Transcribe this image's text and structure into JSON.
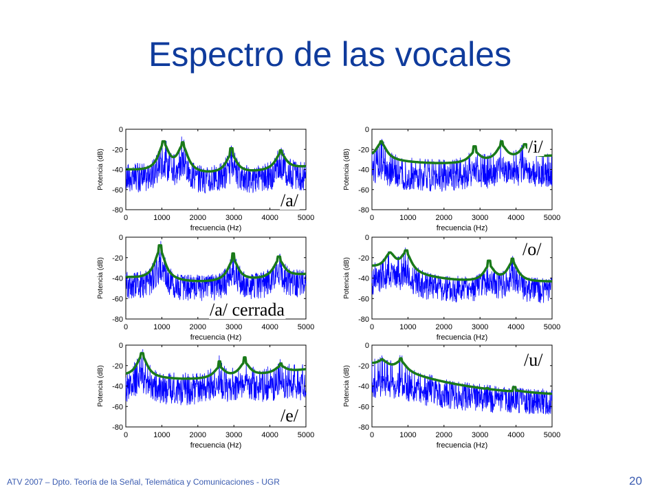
{
  "slide": {
    "title": "Espectro de las vocales",
    "footer": "ATV 2007 – Dpto. Teoría de la Señal, Telemática y Comunicaciones - UGR",
    "page_number": "20"
  },
  "colors": {
    "title": "#0f3b9c",
    "spectrum": "#0000ff",
    "envelope": "#1a7a1a",
    "footer": "#3a5bb0"
  },
  "chart_data": [
    {
      "type": "line",
      "vowel_label": "/a/",
      "xlabel": "frecuencia (Hz)",
      "ylabel": "Potencia (dB)",
      "xlim": [
        0,
        5000
      ],
      "ylim": [
        -80,
        0
      ],
      "xticks": [
        0,
        1000,
        2000,
        3000,
        4000,
        5000
      ],
      "yticks": [
        0,
        -20,
        -40,
        -60,
        -80
      ],
      "envelope": {
        "formants": [
          [
            1050,
            -12
          ],
          [
            1580,
            -13
          ],
          [
            2930,
            -19
          ],
          [
            4300,
            -21
          ]
        ],
        "start": -41,
        "end": -38
      },
      "spectrum": {
        "floor": -62,
        "peak_offset": 6
      }
    },
    {
      "type": "line",
      "vowel_label": "/i/",
      "xlabel": "frecuencia (Hz)",
      "ylabel": "Potencia (dB)",
      "xlim": [
        0,
        5000
      ],
      "ylim": [
        -80,
        0
      ],
      "xticks": [
        0,
        1000,
        2000,
        3000,
        4000,
        5000
      ],
      "yticks": [
        0,
        -20,
        -40,
        -60,
        -80
      ],
      "envelope": {
        "formants": [
          [
            260,
            -12
          ],
          [
            2850,
            -17
          ],
          [
            3600,
            -12
          ],
          [
            4250,
            -15
          ]
        ],
        "start": -30,
        "end": -27
      },
      "spectrum": {
        "floor": -68,
        "peak_offset": 4
      }
    },
    {
      "type": "line",
      "vowel_label": "/a/ cerrada",
      "xlabel": "frecuencia (Hz)",
      "ylabel": "Potencia (dB)",
      "xlim": [
        0,
        5000
      ],
      "ylim": [
        -80,
        0
      ],
      "xticks": [
        0,
        1000,
        2000,
        3000,
        4000,
        5000
      ],
      "yticks": [
        0,
        -20,
        -40,
        -60,
        -80
      ],
      "envelope": {
        "formants": [
          [
            950,
            -8
          ],
          [
            2980,
            -16
          ],
          [
            4250,
            -19
          ]
        ],
        "start": -40,
        "end": -37
      },
      "spectrum": {
        "floor": -58,
        "peak_offset": 5
      }
    },
    {
      "type": "line",
      "vowel_label": "/o/",
      "xlabel": "frecuencia (Hz)",
      "ylabel": "Potencia (dB)",
      "xlim": [
        0,
        5000
      ],
      "ylim": [
        -80,
        0
      ],
      "xticks": [
        0,
        1000,
        2000,
        3000,
        4000,
        5000
      ],
      "yticks": [
        0,
        -20,
        -40,
        -60,
        -80
      ],
      "envelope": {
        "formants": [
          [
            500,
            -15
          ],
          [
            950,
            -13
          ],
          [
            3250,
            -23
          ],
          [
            3900,
            -21
          ]
        ],
        "start": -30,
        "end": -44
      },
      "spectrum": {
        "floor": -62,
        "peak_offset": 3
      }
    },
    {
      "type": "line",
      "vowel_label": "/e/",
      "xlabel": "frecuencia (Hz)",
      "ylabel": "Potencia (dB)",
      "xlim": [
        0,
        5000
      ],
      "ylim": [
        -80,
        0
      ],
      "xticks": [
        0,
        1000,
        2000,
        3000,
        4000,
        5000
      ],
      "yticks": [
        0,
        -20,
        -40,
        -60,
        -80
      ],
      "envelope": {
        "formants": [
          [
            450,
            -8
          ],
          [
            2600,
            -16
          ],
          [
            3300,
            -12
          ],
          [
            4300,
            -18
          ]
        ],
        "start": -31,
        "end": -24
      },
      "spectrum": {
        "floor": -62,
        "peak_offset": 6
      }
    },
    {
      "type": "line",
      "vowel_label": "/u/",
      "xlabel": "frecuencia (Hz)",
      "ylabel": "Potencia (dB)",
      "xlim": [
        0,
        5000
      ],
      "ylim": [
        -80,
        0
      ],
      "xticks": [
        0,
        1000,
        2000,
        3000,
        4000,
        5000
      ],
      "yticks": [
        0,
        -20,
        -40,
        -60,
        -80
      ],
      "envelope": {
        "formants": [
          [
            280,
            -14
          ],
          [
            800,
            -13
          ],
          [
            3200,
            -42
          ],
          [
            3950,
            -41
          ]
        ],
        "start": -19,
        "end": -48
      },
      "spectrum": {
        "floor": -65,
        "peak_offset": 4
      }
    }
  ]
}
